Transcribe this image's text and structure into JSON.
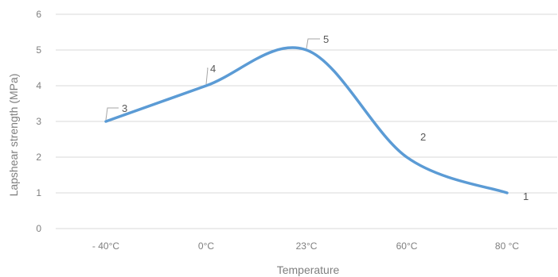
{
  "chart_data": {
    "type": "line",
    "smooth": true,
    "categories": [
      "- 40°C",
      "0°C",
      "23°C",
      "60°C",
      "80 °C"
    ],
    "values": [
      3,
      4,
      5,
      2,
      1
    ],
    "data_labels": [
      "3",
      "4",
      "5",
      "2",
      "1"
    ],
    "xlabel": "Temperature",
    "ylabel": "Lapshear strength (MPa)",
    "ylim": [
      0,
      6
    ],
    "yticks": [
      "0",
      "1",
      "2",
      "3",
      "4",
      "5",
      "6"
    ],
    "grid": true,
    "line_color": "#5b9bd5"
  }
}
